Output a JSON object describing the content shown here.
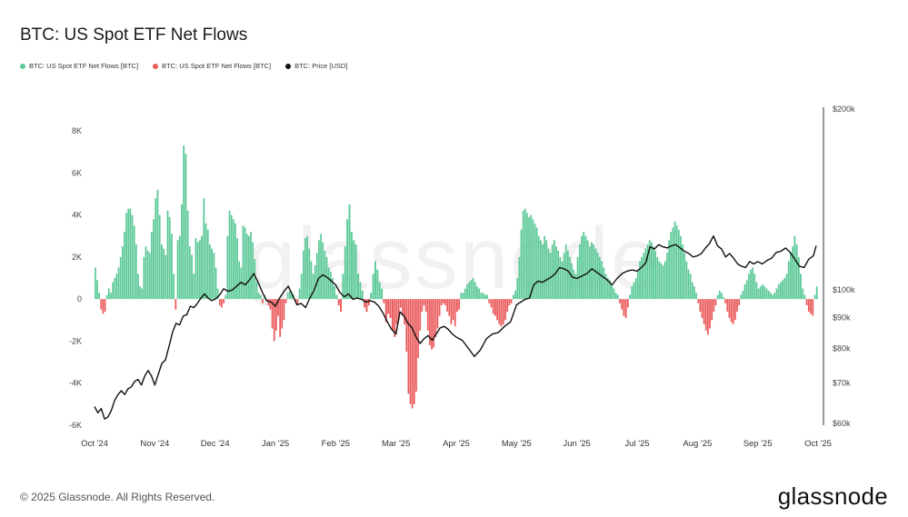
{
  "header": {
    "title": "BTC: US Spot ETF Net Flows"
  },
  "footer": {
    "copyright": "© 2025 Glassnode. All Rights Reserved.",
    "logo_text": "glassnode"
  },
  "watermark": "glassnode",
  "colors": {
    "inflow": "#5cc998",
    "outflow": "#ea5b5b",
    "price": "#111111",
    "axis": "#666666"
  },
  "chart_data": {
    "type": "bar",
    "title": "BTC: US Spot ETF Net Flows",
    "legend": [
      {
        "name": "BTC: US Spot ETF Net Flows [BTC]",
        "color": "#5cc998"
      },
      {
        "name": "BTC: US Spot ETF Net Flows [BTC]",
        "color": "#ea5b5b"
      },
      {
        "name": "BTC: Price [USD]",
        "color": "#111111"
      }
    ],
    "legend_position": "top-left",
    "grid": false,
    "x_ticks": [
      "Oct '24",
      "Nov '24",
      "Dec '24",
      "Jan '25",
      "Feb '25",
      "Mar '25",
      "Apr '25",
      "May '25",
      "Jun '25",
      "Jul '25",
      "Aug '25",
      "Sep '25",
      "Oct '25"
    ],
    "y_left": {
      "ticks": [
        "8K",
        "6K",
        "4K",
        "2K",
        "0",
        "-2K",
        "-4K",
        "-6K"
      ],
      "tick_values": [
        8000,
        6000,
        4000,
        2000,
        0,
        -2000,
        -4000,
        -6000
      ],
      "range": [
        -6000,
        8000
      ],
      "unit": "BTC"
    },
    "y_right": {
      "ticks": [
        "$200k",
        "$100k",
        "$90k",
        "$80k",
        "$70k",
        "$60k"
      ],
      "tick_values": [
        200000,
        100000,
        90000,
        80000,
        70000,
        60000
      ],
      "range": [
        60000,
        200000
      ],
      "scale": "log",
      "unit": "USD"
    },
    "flows_series": {
      "name": "BTC: US Spot ETF Net Flows [BTC]",
      "months": [
        "Oct '24",
        "Nov '24",
        "Dec '24",
        "Jan '25",
        "Feb '25",
        "Mar '25",
        "Apr '25",
        "May '25",
        "Jun '25",
        "Jul '25",
        "Aug '25",
        "Sep '25"
      ],
      "values_by_month": [
        [
          1500,
          900,
          300,
          -500,
          -700,
          -600,
          200,
          500,
          300,
          800,
          1000,
          1200,
          1500,
          2000,
          2500,
          3200,
          4100,
          4300,
          4300,
          4000,
          3500,
          2600,
          1200,
          600,
          500,
          2000,
          2500,
          2300,
          2200,
          3200,
          3800
        ],
        [
          4800,
          5200,
          4000,
          2600,
          2400,
          2100,
          4200,
          3900,
          3100,
          1200,
          -500,
          2800,
          3000,
          4500,
          7300,
          6900,
          4200,
          2500,
          2100,
          1200,
          2900,
          2700,
          2800,
          3000,
          4800,
          3600,
          3300,
          2600,
          2400,
          2200
        ],
        [
          1500,
          500,
          -300,
          -400,
          -200,
          200,
          3000,
          4200,
          4000,
          3800,
          3600,
          2900,
          1800,
          1500,
          3500,
          3400,
          3100,
          3000,
          3200,
          2700,
          1900,
          800,
          300,
          200,
          -200,
          200,
          -100,
          -300,
          -500,
          -1400,
          -2000
        ],
        [
          -1500,
          -800,
          -1800,
          -1400,
          -1000,
          -200,
          300,
          400,
          300,
          200,
          -100,
          -300,
          500,
          1200,
          2300,
          2900,
          3000,
          2400,
          1800,
          1200,
          1600,
          2200,
          2800,
          3100,
          2700,
          2300,
          2000,
          1500,
          1300,
          1000,
          600
        ],
        [
          200,
          -300,
          -600,
          1200,
          2500,
          3800,
          4500,
          3200,
          2800,
          2600,
          1200,
          800,
          400,
          -400,
          -600,
          -300,
          300,
          1200,
          1800,
          1400,
          800,
          500,
          -200,
          -1100,
          -700,
          -900,
          -1500,
          -1800
        ],
        [
          -1200,
          -1000,
          -400,
          -800,
          -1200,
          -2500,
          -4500,
          -5000,
          -5200,
          -5000,
          -4400,
          -2800,
          -1500,
          -600,
          -300,
          -600,
          -1500,
          -2200,
          -2400,
          -2300,
          -1800,
          -1400,
          -800,
          -300,
          -200,
          -300,
          -600,
          -800,
          -1200,
          -1000,
          -1300
        ],
        [
          -600,
          -500,
          300,
          300,
          500,
          700,
          800,
          900,
          1000,
          800,
          600,
          500,
          300,
          300,
          200,
          200,
          -200,
          -400,
          -700,
          -800,
          -1000,
          -1200,
          -1300,
          -1200,
          -1000,
          -600,
          -300,
          -200,
          200,
          400
        ],
        [
          1000,
          2000,
          3300,
          4200,
          4300,
          4100,
          3900,
          4000,
          3800,
          3600,
          3400,
          3000,
          2800,
          2600,
          3000,
          2800,
          2400,
          2200,
          2600,
          2800,
          2500,
          2300,
          2000,
          1800,
          2200,
          2600,
          2300,
          2000,
          1700,
          1400,
          1200
        ],
        [
          2000,
          2600,
          3000,
          3200,
          3000,
          2800,
          2500,
          2700,
          2600,
          2400,
          2200,
          2000,
          1800,
          1500,
          1200,
          1000,
          900,
          700,
          500,
          300,
          200,
          -200,
          -500,
          -800,
          -900,
          -400,
          200,
          600,
          800,
          1000
        ],
        [
          1400,
          1800,
          2000,
          2200,
          2400,
          2600,
          2800,
          2700,
          2500,
          2300,
          2000,
          1800,
          1700,
          1600,
          1800,
          2200,
          2800,
          3200,
          3400,
          3700,
          3500,
          3300,
          3000,
          2600,
          2200,
          1800,
          1400,
          1200,
          800,
          600,
          300
        ],
        [
          -200,
          -600,
          -900,
          -1200,
          -1500,
          -1700,
          -1400,
          -1000,
          -600,
          -300,
          200,
          400,
          300,
          100,
          -200,
          -600,
          -900,
          -1100,
          -1200,
          -1000,
          -600,
          -300,
          200,
          400,
          700,
          900,
          1200,
          1400,
          1500,
          1200,
          800
        ],
        [
          500,
          600,
          700,
          600,
          500,
          400,
          300,
          200,
          300,
          500,
          700,
          800,
          900,
          1000,
          1200,
          1800,
          2200,
          2500,
          3000,
          2600,
          2000,
          1200,
          500,
          200,
          -300,
          -600,
          -700,
          -800,
          200,
          600
        ]
      ]
    },
    "price_series": {
      "name": "BTC: Price [USD]",
      "points": [
        [
          "Oct '24",
          64000
        ],
        [
          "",
          62500
        ],
        [
          "",
          63500
        ],
        [
          "",
          61000
        ],
        [
          "",
          61500
        ],
        [
          "",
          63000
        ],
        [
          "",
          65500
        ],
        [
          "",
          67000
        ],
        [
          "",
          68000
        ],
        [
          "",
          67000
        ],
        [
          "",
          68500
        ],
        [
          "",
          69000
        ],
        [
          "",
          70500
        ],
        [
          "",
          71000
        ],
        [
          "",
          69500
        ],
        [
          "",
          72000
        ],
        [
          "",
          73500
        ],
        [
          "",
          72000
        ],
        [
          "Nov '24",
          69500
        ],
        [
          "",
          72500
        ],
        [
          "",
          75500
        ],
        [
          "",
          76500
        ],
        [
          "",
          80500
        ],
        [
          "",
          85000
        ],
        [
          "",
          88000
        ],
        [
          "",
          87500
        ],
        [
          "",
          90500
        ],
        [
          "",
          91000
        ],
        [
          "",
          94000
        ],
        [
          "",
          93500
        ],
        [
          "",
          95000
        ],
        [
          "",
          97000
        ],
        [
          "",
          98500
        ],
        [
          "",
          97000
        ],
        [
          "",
          96000
        ],
        [
          "Dec '24",
          96500
        ],
        [
          "",
          98000
        ],
        [
          "",
          100500
        ],
        [
          "",
          99500
        ],
        [
          "",
          100000
        ],
        [
          "",
          101500
        ],
        [
          "",
          103000
        ],
        [
          "",
          102000
        ],
        [
          "",
          104000
        ],
        [
          "",
          106500
        ],
        [
          "",
          103000
        ],
        [
          "",
          99000
        ],
        [
          "",
          96000
        ],
        [
          "",
          95500
        ],
        [
          "Jan '25",
          94000
        ],
        [
          "",
          97000
        ],
        [
          "",
          99500
        ],
        [
          "",
          101500
        ],
        [
          "",
          98000
        ],
        [
          "",
          94500
        ],
        [
          "",
          95000
        ],
        [
          "",
          93500
        ],
        [
          "",
          97000
        ],
        [
          "",
          100000
        ],
        [
          "",
          104500
        ],
        [
          "",
          106000
        ],
        [
          "",
          105000
        ],
        [
          "",
          103500
        ],
        [
          "Feb '25",
          102000
        ],
        [
          "",
          99000
        ],
        [
          "",
          97500
        ],
        [
          "",
          98500
        ],
        [
          "",
          96500
        ],
        [
          "",
          97000
        ],
        [
          "",
          96500
        ],
        [
          "",
          95500
        ],
        [
          "",
          96000
        ],
        [
          "",
          95500
        ],
        [
          "",
          94000
        ],
        [
          "",
          91500
        ],
        [
          "",
          88500
        ],
        [
          "",
          86000
        ],
        [
          "Mar '25",
          84500
        ],
        [
          "",
          92000
        ],
        [
          "",
          90500
        ],
        [
          "",
          88000
        ],
        [
          "",
          86500
        ],
        [
          "",
          83500
        ],
        [
          "",
          81500
        ],
        [
          "",
          83000
        ],
        [
          "",
          84000
        ],
        [
          "",
          82500
        ],
        [
          "",
          84500
        ],
        [
          "",
          86500
        ],
        [
          "",
          87000
        ],
        [
          "",
          86000
        ],
        [
          "",
          84500
        ],
        [
          "Apr '25",
          83500
        ],
        [
          "",
          82500
        ],
        [
          "",
          80000
        ],
        [
          "",
          77500
        ],
        [
          "",
          79500
        ],
        [
          "",
          83000
        ],
        [
          "",
          84500
        ],
        [
          "",
          85000
        ],
        [
          "",
          87000
        ],
        [
          "",
          88500
        ],
        [
          "May '25",
          94500
        ],
        [
          "",
          95500
        ],
        [
          "",
          96500
        ],
        [
          "",
          97000
        ],
        [
          "",
          102000
        ],
        [
          "",
          103500
        ],
        [
          "",
          103000
        ],
        [
          "",
          104000
        ],
        [
          "",
          105000
        ],
        [
          "",
          106500
        ],
        [
          "",
          109000
        ],
        [
          "",
          108500
        ],
        [
          "",
          107500
        ],
        [
          "",
          105000
        ],
        [
          "Jun '25",
          104500
        ],
        [
          "",
          105500
        ],
        [
          "",
          106500
        ],
        [
          "",
          108500
        ],
        [
          "",
          107000
        ],
        [
          "",
          105500
        ],
        [
          "",
          104000
        ],
        [
          "",
          102000
        ],
        [
          "",
          104500
        ],
        [
          "",
          106500
        ],
        [
          "",
          107500
        ],
        [
          "",
          108000
        ],
        [
          "Jul '25",
          107500
        ],
        [
          "",
          109000
        ],
        [
          "",
          111000
        ],
        [
          "",
          118000
        ],
        [
          "",
          117000
        ],
        [
          "",
          119000
        ],
        [
          "",
          118000
        ],
        [
          "",
          117500
        ],
        [
          "",
          118500
        ],
        [
          "",
          119000
        ],
        [
          "",
          117500
        ],
        [
          "",
          116000
        ],
        [
          "",
          115000
        ],
        [
          "",
          113500
        ],
        [
          "Aug '25",
          114000
        ],
        [
          "",
          115000
        ],
        [
          "",
          117500
        ],
        [
          "",
          119500
        ],
        [
          "",
          123000
        ],
        [
          "",
          118500
        ],
        [
          "",
          117000
        ],
        [
          "",
          113500
        ],
        [
          "",
          115000
        ],
        [
          "",
          113000
        ],
        [
          "",
          110500
        ],
        [
          "",
          109500
        ],
        [
          "",
          109000
        ],
        [
          "",
          111500
        ],
        [
          "",
          110500
        ],
        [
          "Sep '25",
          111500
        ],
        [
          "",
          110500
        ],
        [
          "",
          112000
        ],
        [
          "",
          113000
        ],
        [
          "",
          115500
        ],
        [
          "",
          116000
        ],
        [
          "",
          117500
        ],
        [
          "",
          115500
        ],
        [
          "",
          112500
        ],
        [
          "",
          109500
        ],
        [
          "",
          109000
        ],
        [
          "",
          112500
        ],
        [
          "",
          114000
        ],
        [
          "Oct '25",
          118500
        ]
      ]
    }
  }
}
